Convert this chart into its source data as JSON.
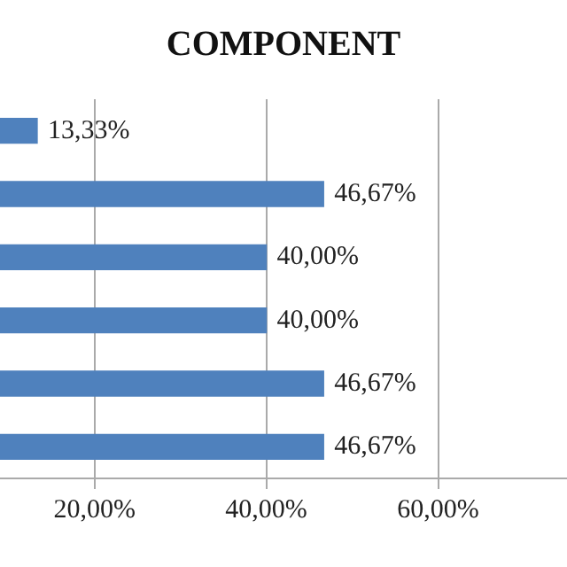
{
  "chart_data": {
    "type": "bar",
    "orientation": "horizontal",
    "title": "COMPONENT",
    "categories": [
      null,
      null,
      null,
      null,
      null,
      null
    ],
    "values": [
      13.33,
      46.67,
      40.0,
      40.0,
      46.67,
      46.67
    ],
    "value_labels": [
      "13,33%",
      "46,67%",
      "40,00%",
      "40,00%",
      "46,67%",
      "46,67%"
    ],
    "color": "#4f81bd",
    "xlim": [
      9,
      75
    ],
    "xticks": [
      {
        "value": 20,
        "label": "20,00%"
      },
      {
        "value": 40,
        "label": "40,00%"
      },
      {
        "value": 60,
        "label": "60,00%"
      }
    ],
    "grid": "x",
    "legend": false,
    "tick_labels": "x"
  }
}
